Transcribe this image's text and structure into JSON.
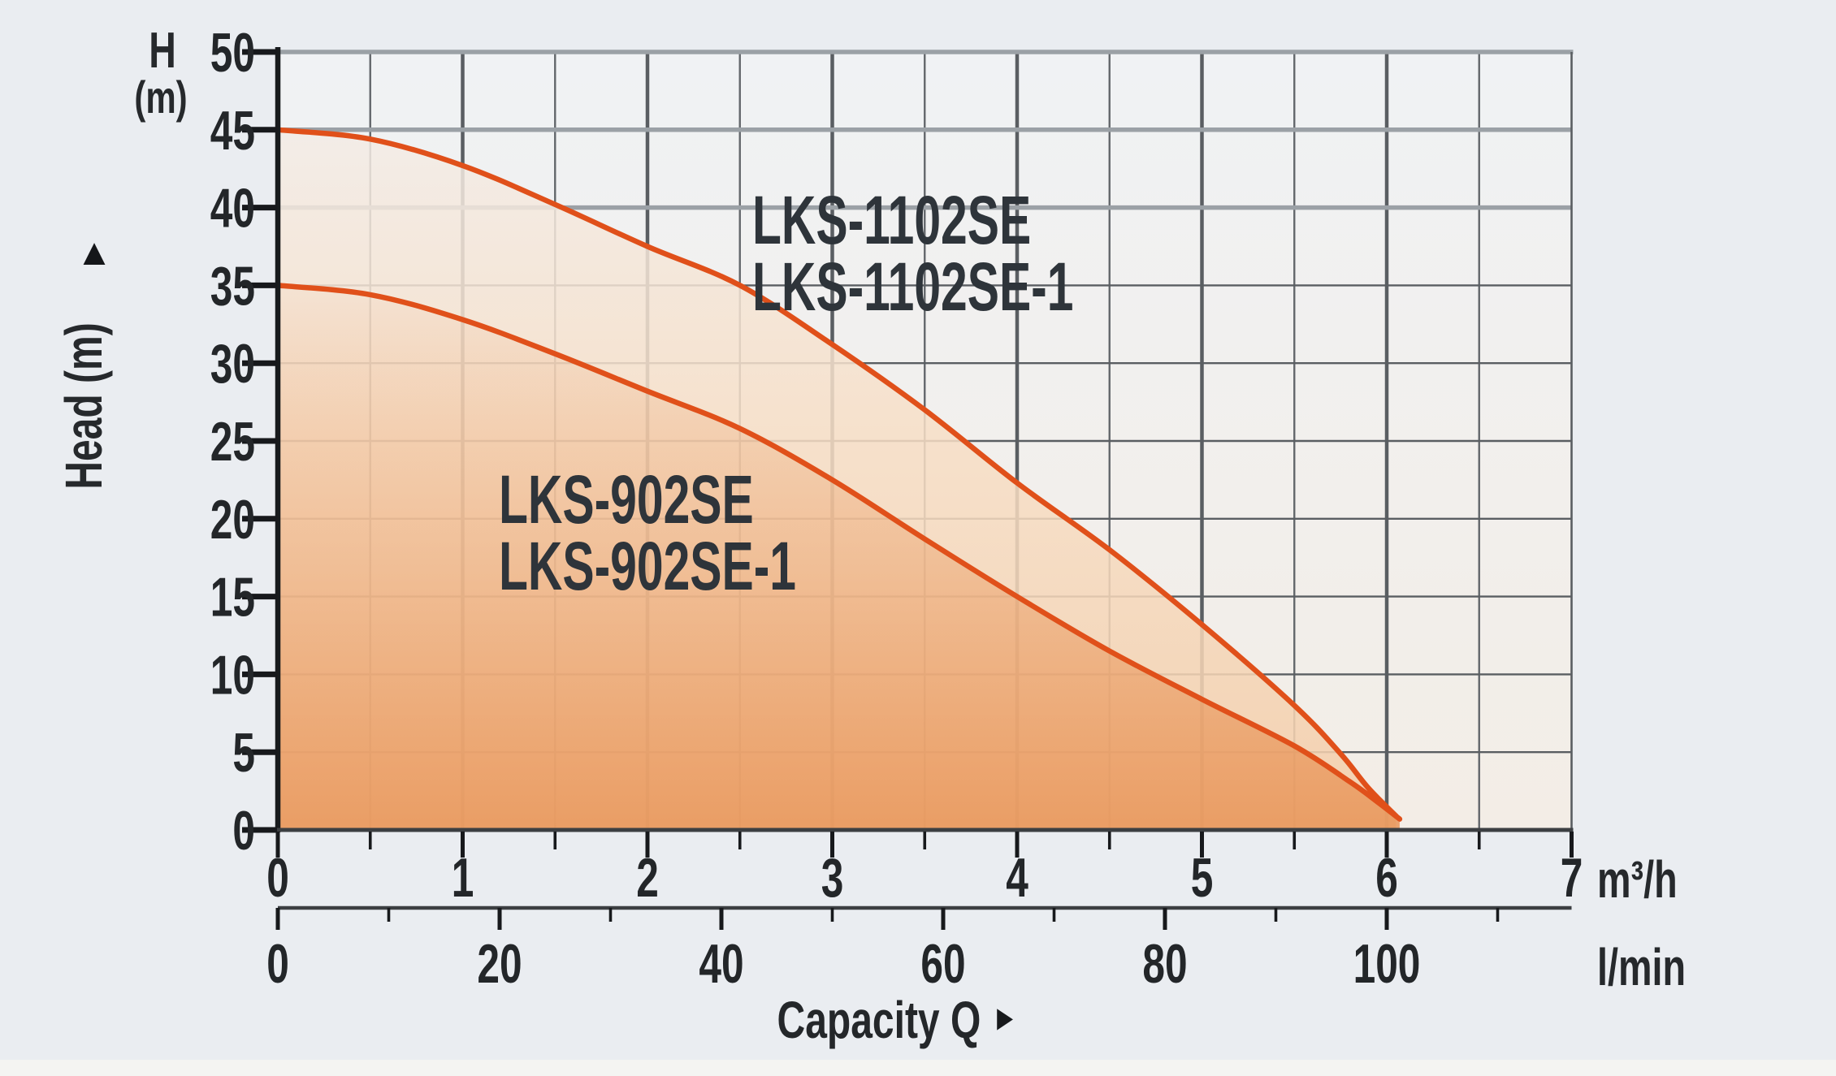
{
  "icons": {
    "up_arrow": "▲",
    "right_arrow": "►"
  },
  "colors": {
    "page_bg": "#eaedf1",
    "plot_bg_top": "#f0f2f4",
    "plot_bg_bottom": "#f3ede6",
    "grid": "#5a5e62",
    "grid_minor": "#63676b",
    "grid_thick_gray": "#9ba1a6",
    "axis_left": "#181b1d",
    "axis_bottom": "#3c3f42",
    "tick": "#17191c",
    "text": "#232629",
    "series_label": "#2e343a",
    "curve": "#e0501a",
    "fill_upper_stops": [
      "rgba(243,236,230,0.85)",
      "rgba(247,222,197,0.85)",
      "rgba(243,205,169,0.88)"
    ],
    "fill_lower_stops": [
      "rgba(234,155,97,0.05)",
      "rgba(234,152,92,0.42)",
      "rgba(232,146,84,0.82)"
    ]
  },
  "chart_data": {
    "type": "line",
    "title": "",
    "xlabel": "Capacity Q",
    "x_axis": {
      "unit": "m³/h",
      "min": 0,
      "max": 7,
      "major_ticks": [
        0,
        1,
        2,
        3,
        4,
        5,
        6,
        7
      ],
      "minor_ticks": [
        0.5,
        1.5,
        2.5,
        3.5,
        4.5,
        5.5,
        6.5
      ],
      "gridline_step": 0.5
    },
    "x_axis_secondary": {
      "unit": "l/min",
      "major_ticks": [
        0,
        20,
        40,
        60,
        80,
        100
      ],
      "minor_ticks": [
        10,
        30,
        50,
        70,
        90,
        110
      ],
      "lmin_per_m3h": 16.6667
    },
    "y_axis": {
      "label": "Head (m)",
      "corner_symbol": "H",
      "corner_unit": "(m)",
      "min": 0,
      "max": 50,
      "ticks": [
        0,
        5,
        10,
        15,
        20,
        25,
        30,
        35,
        40,
        45,
        50
      ],
      "thick_gray_lines": [
        40,
        45,
        50
      ]
    },
    "grid": true,
    "series": [
      {
        "name": "LKS-1102SE",
        "label_lines": [
          "LKS-1102SE",
          "LKS-1102SE-1"
        ],
        "points": [
          [
            0,
            45
          ],
          [
            0.5,
            44.4
          ],
          [
            1,
            42.7
          ],
          [
            1.5,
            40.2
          ],
          [
            2,
            37.5
          ],
          [
            2.5,
            35
          ],
          [
            3,
            31.2
          ],
          [
            3.5,
            27
          ],
          [
            4,
            22.3
          ],
          [
            4.5,
            18
          ],
          [
            5,
            13.2
          ],
          [
            5.5,
            8
          ],
          [
            5.75,
            4.9
          ],
          [
            5.9,
            2.7
          ],
          [
            6.05,
            0.9
          ]
        ]
      },
      {
        "name": "LKS-902SE",
        "label_lines": [
          "LKS-902SE",
          "LKS-902SE-1"
        ],
        "points": [
          [
            0,
            35
          ],
          [
            0.5,
            34.4
          ],
          [
            1,
            32.8
          ],
          [
            1.5,
            30.6
          ],
          [
            2,
            28.2
          ],
          [
            2.5,
            25.8
          ],
          [
            3,
            22.5
          ],
          [
            3.5,
            18.7
          ],
          [
            4,
            15
          ],
          [
            4.5,
            11.5
          ],
          [
            5,
            8.4
          ],
          [
            5.5,
            5.4
          ],
          [
            5.8,
            3.1
          ],
          [
            5.95,
            1.8
          ],
          [
            6.07,
            0.7
          ]
        ]
      }
    ]
  }
}
